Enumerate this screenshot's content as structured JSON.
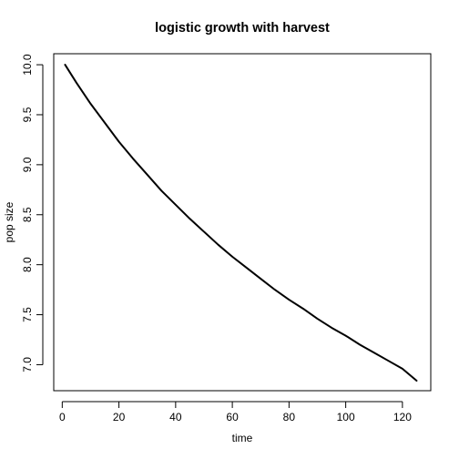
{
  "chart_data": {
    "type": "line",
    "title": "logistic growth with harvest",
    "xlabel": "time",
    "ylabel": "pop size",
    "xlim": [
      -3,
      130
    ],
    "ylim": [
      6.74,
      10.11
    ],
    "xticks": [
      0,
      20,
      40,
      60,
      80,
      100,
      120
    ],
    "yticks": [
      7.0,
      7.5,
      8.0,
      8.5,
      9.0,
      9.5,
      10.0
    ],
    "xtick_labels": [
      "0",
      "20",
      "40",
      "60",
      "80",
      "100",
      "120"
    ],
    "ytick_labels": [
      "7.0",
      "7.5",
      "8.0",
      "8.5",
      "9.0",
      "9.5",
      "10.0"
    ],
    "grid": false,
    "line_color": "#000000",
    "series": [
      {
        "x": [
          1,
          5,
          10,
          15,
          20,
          25,
          30,
          35,
          40,
          45,
          50,
          55,
          60,
          65,
          70,
          75,
          80,
          85,
          90,
          95,
          100,
          105,
          110,
          115,
          120,
          125
        ],
        "values": [
          10.0,
          9.82,
          9.61,
          9.42,
          9.23,
          9.06,
          8.9,
          8.74,
          8.6,
          8.46,
          8.33,
          8.2,
          8.08,
          7.97,
          7.86,
          7.75,
          7.65,
          7.56,
          7.46,
          7.37,
          7.29,
          7.2,
          7.12,
          7.04,
          6.96,
          6.84
        ]
      }
    ]
  }
}
